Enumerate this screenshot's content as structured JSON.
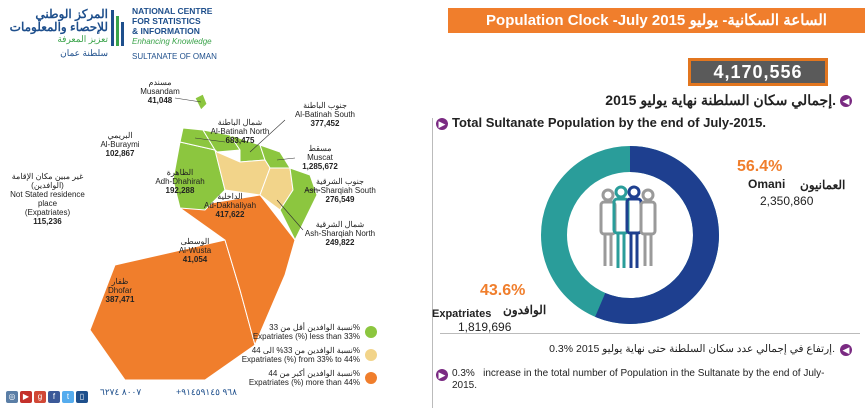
{
  "header": {
    "logo_ar_line1": "المركز الوطني",
    "logo_ar_line2": "للإحصاء والمعلومات",
    "logo_ar_tag": "تعزيز المعرفة",
    "logo_ar_country": "سلطنة عمان",
    "logo_en_line1": "NATIONAL CENTRE",
    "logo_en_line2": "FOR STATISTICS",
    "logo_en_line3": "& INFORMATION",
    "logo_en_tag": "Enhancing Knowledge",
    "logo_en_country": "SULTANATE OF OMAN",
    "title": "Population Clock -July 2015 الساعة السكانية- يوليو"
  },
  "counter": {
    "value": "4,170,556"
  },
  "totals": {
    "ar_label": "إجمالي سكان السلطنة نهاية يوليو 2015.",
    "en_label": "Total Sultanate Population by the end of July-2015."
  },
  "donut": {
    "omani_pct": "56.4%",
    "omani_label_en": "Omani",
    "omani_label_ar": "العمانيون",
    "omani_value": "2,350,860",
    "expat_pct": "43.6%",
    "expat_label_ar": "الوافدون",
    "expat_label_en": "Expatriates",
    "expat_value": "1,819,696",
    "colors": {
      "omani": "#1e3f8f",
      "expat": "#2a9d9a"
    }
  },
  "increase": {
    "ar": "0.3% إرتفاع في إجمالي عدد سكان السلطنة حتى نهاية يوليو 2015.",
    "en_pct": "0.3%",
    "en_text": "increase in the total number of Population in the Sultanate by the end of July- 2015."
  },
  "map": {
    "regions": [
      {
        "ar": "مسندم",
        "en": "Musandam",
        "value": "41,048"
      },
      {
        "ar": "جنوب الباطنة",
        "en": "Al-Batinah South",
        "value": "377,452"
      },
      {
        "ar": "شمال الباطنة",
        "en": "Al-Batinah North",
        "value": "683,475"
      },
      {
        "ar": "البريمي",
        "en": "Al-Buraymi",
        "value": "102,867"
      },
      {
        "ar": "مسقط",
        "en": "Muscat",
        "value": "1,285,672"
      },
      {
        "ar": "الظاهرة",
        "en": "Adh-Dhahirah",
        "value": "192,288"
      },
      {
        "ar": "جنوب الشرقية",
        "en": "Ash-Sharqiah South",
        "value": "276,549"
      },
      {
        "ar": "الداخلية",
        "en": "Ad-Dakhaliyah",
        "value": "417,622"
      },
      {
        "ar": "شمال الشرقية",
        "en": "Ash-Sharqiah North",
        "value": "249,822"
      },
      {
        "ar": "الوسطى",
        "en": "Al-Wusta",
        "value": "41,054"
      },
      {
        "ar": "ظفار",
        "en": "Dhofar",
        "value": "387,471"
      }
    ],
    "not_stated": {
      "ar": "غير مبين مكان الإقامة (الوافدين)",
      "en1": "Not Stated residence place",
      "en2": "(Expatriates)",
      "value": "115,236"
    }
  },
  "legend": [
    {
      "ar": "نسبة الوافدين أقل من 33%",
      "en": "Expatriates (%) less than 33%",
      "color": "#8cc63f"
    },
    {
      "ar": "نسبة الوافدين من 33% الى 44%",
      "en": "Expatriates (%) from 33% to 44%",
      "color": "#f2d48a"
    },
    {
      "ar": "نسبة الوافدين أكبر من 44%",
      "en": "Expatriates (%) more than 44%",
      "color": "#f07e2c"
    }
  ],
  "footer": {
    "phone1": "٨٠٠٧ ٦٢٧٤",
    "phone2": "+٩٦٨ ٩١٤٥٩١٤٥",
    "icons": [
      "instagram-icon",
      "youtube-icon",
      "google-plus-icon",
      "facebook-icon",
      "twitter-icon",
      "mobile-icon"
    ]
  }
}
